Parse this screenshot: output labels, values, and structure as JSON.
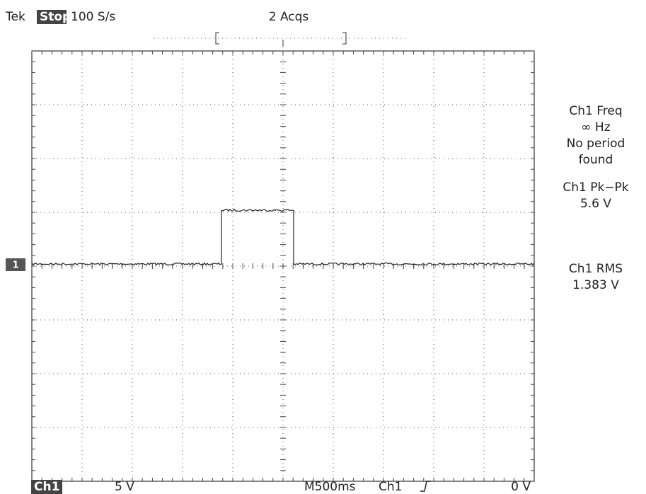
{
  "header": {
    "brand": "Tek",
    "state": "Stop",
    "sample_rate": "100 S/s",
    "acquisitions": "2 Acqs"
  },
  "measurements": [
    {
      "label": "Ch1 Freq",
      "lines": [
        "∞ Hz",
        "No period",
        "found"
      ]
    },
    {
      "label": "Ch1 Pk−Pk",
      "lines": [
        "5.6 V"
      ]
    },
    {
      "label": "Ch1 RMS",
      "lines": [
        "1.383 V"
      ]
    }
  ],
  "channel_marker": "1",
  "footer": {
    "channel": "Ch1",
    "scale": "5 V",
    "timebase": "M500ms",
    "trigger_source": "Ch1",
    "trigger_level": "0 V"
  }
}
